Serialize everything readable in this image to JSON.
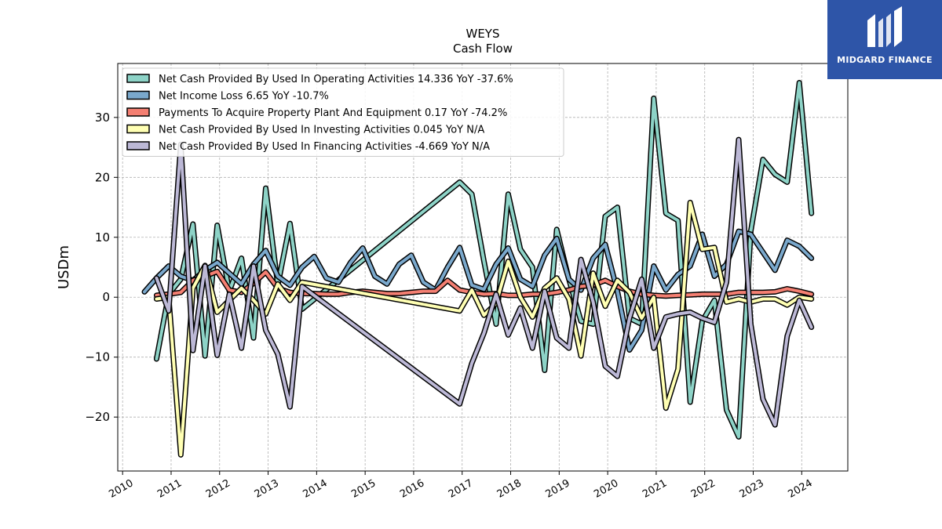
{
  "title_line1": "WEYS",
  "title_line2": "Cash Flow",
  "ylabel": "USDm",
  "logo_text": "MIDGARD FINANCE",
  "chart_data": {
    "type": "line",
    "title": "WEYS Cash Flow",
    "ylabel": "USDm",
    "xlim": [
      2009.9,
      2024.95
    ],
    "ylim": [
      -29,
      39
    ],
    "x_ticks": [
      2010,
      2011,
      2012,
      2013,
      2014,
      2015,
      2016,
      2017,
      2018,
      2019,
      2020,
      2021,
      2022,
      2023,
      2024
    ],
    "x_tick_labels": [
      "2010",
      "2011",
      "2012",
      "2013",
      "2014",
      "2015",
      "2016",
      "2017",
      "2018",
      "2019",
      "2020",
      "2021",
      "2022",
      "2023",
      "2024"
    ],
    "y_ticks": [
      -20,
      -10,
      0,
      10,
      20,
      30
    ],
    "y_tick_labels": [
      "−20",
      "−10",
      "0",
      "10",
      "20",
      "30"
    ],
    "grid": true,
    "legend_position": "top-left",
    "series": [
      {
        "name": "Net Cash Provided By Used In Operating Activities",
        "legend": "Net Cash Provided By Used In Operating Activities  14.336 YoY -37.6%",
        "color": "#8dd3c7",
        "points": [
          [
            2010.7,
            -10.3
          ],
          [
            2010.95,
            0.5
          ],
          [
            2011.2,
            3.0
          ],
          [
            2011.45,
            12.2
          ],
          [
            2011.7,
            -9.8
          ],
          [
            2011.95,
            12.0
          ],
          [
            2012.2,
            1.0
          ],
          [
            2012.45,
            6.5
          ],
          [
            2012.7,
            -6.8
          ],
          [
            2012.95,
            18.2
          ],
          [
            2013.2,
            2.0
          ],
          [
            2013.45,
            12.3
          ],
          [
            2013.7,
            -2.0
          ],
          [
            2016.95,
            19.2
          ],
          [
            2017.2,
            17.2
          ],
          [
            2017.45,
            6.0
          ],
          [
            2017.7,
            -4.5
          ],
          [
            2017.95,
            17.2
          ],
          [
            2018.2,
            8.0
          ],
          [
            2018.45,
            5.0
          ],
          [
            2018.7,
            -12.2
          ],
          [
            2018.95,
            11.3
          ],
          [
            2019.2,
            3.0
          ],
          [
            2019.45,
            -4.0
          ],
          [
            2019.7,
            -4.5
          ],
          [
            2019.95,
            13.5
          ],
          [
            2020.2,
            15.0
          ],
          [
            2020.45,
            -3.5
          ],
          [
            2020.7,
            -4.5
          ],
          [
            2020.95,
            33.2
          ],
          [
            2021.2,
            14.0
          ],
          [
            2021.45,
            12.8
          ],
          [
            2021.7,
            -17.5
          ],
          [
            2021.95,
            -4.0
          ],
          [
            2022.2,
            -0.5
          ],
          [
            2022.45,
            -18.8
          ],
          [
            2022.7,
            -23.3
          ],
          [
            2022.95,
            11.0
          ],
          [
            2023.2,
            23.0
          ],
          [
            2023.45,
            20.5
          ],
          [
            2023.7,
            19.2
          ],
          [
            2023.95,
            35.8
          ],
          [
            2024.2,
            14.0
          ]
        ]
      },
      {
        "name": "Net Income Loss",
        "legend": "Net Income Loss  6.65 YoY -10.7%",
        "color": "#7aa8cc",
        "points": [
          [
            2010.45,
            0.9
          ],
          [
            2010.7,
            3.2
          ],
          [
            2010.95,
            5.2
          ],
          [
            2011.2,
            3.5
          ],
          [
            2011.45,
            2.8
          ],
          [
            2011.7,
            4.5
          ],
          [
            2011.95,
            5.8
          ],
          [
            2012.2,
            4.0
          ],
          [
            2012.45,
            2.2
          ],
          [
            2012.7,
            5.5
          ],
          [
            2012.95,
            7.8
          ],
          [
            2013.2,
            3.5
          ],
          [
            2013.45,
            2.0
          ],
          [
            2013.7,
            5.0
          ],
          [
            2013.95,
            6.8
          ],
          [
            2014.2,
            3.2
          ],
          [
            2014.45,
            2.5
          ],
          [
            2014.7,
            5.8
          ],
          [
            2014.95,
            8.2
          ],
          [
            2015.2,
            3.5
          ],
          [
            2015.45,
            2.2
          ],
          [
            2015.7,
            5.5
          ],
          [
            2015.95,
            7.0
          ],
          [
            2016.2,
            2.5
          ],
          [
            2016.45,
            1.2
          ],
          [
            2016.7,
            5.0
          ],
          [
            2016.95,
            8.3
          ],
          [
            2017.2,
            2.0
          ],
          [
            2017.45,
            1.3
          ],
          [
            2017.7,
            5.5
          ],
          [
            2017.95,
            8.2
          ],
          [
            2018.2,
            3.0
          ],
          [
            2018.45,
            1.8
          ],
          [
            2018.7,
            7.0
          ],
          [
            2018.95,
            9.8
          ],
          [
            2019.2,
            3.0
          ],
          [
            2019.45,
            1.2
          ],
          [
            2019.7,
            6.5
          ],
          [
            2019.95,
            8.8
          ],
          [
            2020.2,
            1.0
          ],
          [
            2020.45,
            -8.8
          ],
          [
            2020.7,
            -5.5
          ],
          [
            2020.95,
            5.2
          ],
          [
            2021.2,
            1.2
          ],
          [
            2021.45,
            3.8
          ],
          [
            2021.7,
            5.2
          ],
          [
            2021.95,
            10.5
          ],
          [
            2022.2,
            3.5
          ],
          [
            2022.45,
            5.5
          ],
          [
            2022.7,
            11.0
          ],
          [
            2022.95,
            10.5
          ],
          [
            2023.2,
            7.5
          ],
          [
            2023.45,
            4.5
          ],
          [
            2023.7,
            9.5
          ],
          [
            2023.95,
            8.5
          ],
          [
            2024.2,
            6.5
          ]
        ]
      },
      {
        "name": "Payments To Acquire Property Plant And Equipment",
        "legend": "Payments To Acquire Property Plant And Equipment  0.17 YoY -74.2%",
        "color": "#f47f72",
        "points": [
          [
            2010.7,
            0.3
          ],
          [
            2010.95,
            0.5
          ],
          [
            2011.2,
            0.8
          ],
          [
            2011.45,
            2.8
          ],
          [
            2011.7,
            3.5
          ],
          [
            2011.95,
            4.3
          ],
          [
            2012.2,
            1.2
          ],
          [
            2012.45,
            0.8
          ],
          [
            2012.7,
            2.3
          ],
          [
            2012.95,
            4.2
          ],
          [
            2013.2,
            1.5
          ],
          [
            2013.45,
            0.8
          ],
          [
            2013.7,
            0.6
          ],
          [
            2013.95,
            0.6
          ],
          [
            2014.2,
            0.5
          ],
          [
            2014.45,
            0.5
          ],
          [
            2014.7,
            0.8
          ],
          [
            2014.95,
            1.0
          ],
          [
            2015.2,
            0.8
          ],
          [
            2015.45,
            0.6
          ],
          [
            2015.7,
            0.6
          ],
          [
            2015.95,
            0.8
          ],
          [
            2016.2,
            1.0
          ],
          [
            2016.45,
            1.0
          ],
          [
            2016.7,
            2.8
          ],
          [
            2016.95,
            1.2
          ],
          [
            2017.2,
            0.8
          ],
          [
            2017.45,
            0.5
          ],
          [
            2017.7,
            0.6
          ],
          [
            2017.95,
            0.3
          ],
          [
            2018.2,
            0.3
          ],
          [
            2018.45,
            0.5
          ],
          [
            2018.7,
            0.5
          ],
          [
            2018.95,
            0.8
          ],
          [
            2019.2,
            1.2
          ],
          [
            2019.45,
            1.8
          ],
          [
            2019.7,
            2.0
          ],
          [
            2019.95,
            2.8
          ],
          [
            2020.2,
            1.8
          ],
          [
            2020.45,
            1.0
          ],
          [
            2020.7,
            0.5
          ],
          [
            2020.95,
            0.3
          ],
          [
            2021.2,
            0.2
          ],
          [
            2021.45,
            0.3
          ],
          [
            2021.7,
            0.4
          ],
          [
            2021.95,
            0.5
          ],
          [
            2022.2,
            0.5
          ],
          [
            2022.45,
            0.5
          ],
          [
            2022.7,
            0.8
          ],
          [
            2022.95,
            0.8
          ],
          [
            2023.2,
            0.8
          ],
          [
            2023.45,
            0.9
          ],
          [
            2023.7,
            1.4
          ],
          [
            2023.95,
            1.0
          ],
          [
            2024.2,
            0.5
          ]
        ]
      },
      {
        "name": "Net Cash Provided By Used In Investing Activities",
        "legend": "Net Cash Provided By Used In Investing Activities  0.045 YoY N/A",
        "color": "#ffffb3",
        "points": [
          [
            2010.7,
            -0.3
          ],
          [
            2010.95,
            0.0
          ],
          [
            2011.2,
            -26.3
          ],
          [
            2011.45,
            1.5
          ],
          [
            2011.7,
            5.3
          ],
          [
            2011.95,
            -2.5
          ],
          [
            2012.2,
            -0.5
          ],
          [
            2012.45,
            1.5
          ],
          [
            2012.7,
            -0.5
          ],
          [
            2012.95,
            -2.8
          ],
          [
            2013.2,
            2.2
          ],
          [
            2013.45,
            -0.5
          ],
          [
            2013.7,
            2.5
          ],
          [
            2016.95,
            -2.3
          ],
          [
            2017.2,
            1.2
          ],
          [
            2017.45,
            -3.0
          ],
          [
            2017.7,
            -1.0
          ],
          [
            2017.95,
            6.0
          ],
          [
            2018.2,
            0.0
          ],
          [
            2018.45,
            -3.3
          ],
          [
            2018.7,
            1.5
          ],
          [
            2018.95,
            3.2
          ],
          [
            2019.2,
            -0.3
          ],
          [
            2019.45,
            -9.8
          ],
          [
            2019.7,
            4.0
          ],
          [
            2019.95,
            -1.5
          ],
          [
            2020.2,
            2.8
          ],
          [
            2020.45,
            0.8
          ],
          [
            2020.7,
            -3.5
          ],
          [
            2020.95,
            0.0
          ],
          [
            2021.2,
            -18.5
          ],
          [
            2021.45,
            -12.0
          ],
          [
            2021.7,
            15.8
          ],
          [
            2021.95,
            8.0
          ],
          [
            2022.2,
            8.3
          ],
          [
            2022.45,
            -0.8
          ],
          [
            2022.7,
            -0.3
          ],
          [
            2022.95,
            -0.8
          ],
          [
            2023.2,
            -0.3
          ],
          [
            2023.45,
            -0.3
          ],
          [
            2023.7,
            -1.3
          ],
          [
            2023.95,
            0.0
          ],
          [
            2024.2,
            -0.3
          ]
        ]
      },
      {
        "name": "Net Cash Provided By Used In Financing Activities",
        "legend": "Net Cash Provided By Used In Financing Activities  -4.669 YoY N/A",
        "color": "#bcb8d6",
        "points": [
          [
            2010.7,
            3.2
          ],
          [
            2010.95,
            -2.3
          ],
          [
            2011.2,
            25.5
          ],
          [
            2011.45,
            -8.9
          ],
          [
            2011.7,
            5.2
          ],
          [
            2011.95,
            -9.7
          ],
          [
            2012.2,
            0.5
          ],
          [
            2012.45,
            -8.5
          ],
          [
            2012.7,
            5.2
          ],
          [
            2012.95,
            -5.5
          ],
          [
            2013.2,
            -9.5
          ],
          [
            2013.45,
            -18.3
          ],
          [
            2013.7,
            1.8
          ],
          [
            2016.95,
            -17.8
          ],
          [
            2017.2,
            -11.0
          ],
          [
            2017.45,
            -6.0
          ],
          [
            2017.7,
            0.5
          ],
          [
            2017.95,
            -6.3
          ],
          [
            2018.2,
            -1.8
          ],
          [
            2018.45,
            -8.5
          ],
          [
            2018.7,
            1.0
          ],
          [
            2018.95,
            -6.8
          ],
          [
            2019.2,
            -8.5
          ],
          [
            2019.45,
            6.3
          ],
          [
            2019.7,
            -0.8
          ],
          [
            2019.95,
            -11.5
          ],
          [
            2020.2,
            -13.2
          ],
          [
            2020.45,
            -3.5
          ],
          [
            2020.7,
            3.0
          ],
          [
            2020.95,
            -8.5
          ],
          [
            2021.2,
            -3.3
          ],
          [
            2021.45,
            -2.8
          ],
          [
            2021.7,
            -2.5
          ],
          [
            2021.95,
            -3.5
          ],
          [
            2022.2,
            -4.2
          ],
          [
            2022.45,
            2.5
          ],
          [
            2022.7,
            26.3
          ],
          [
            2022.95,
            -4.5
          ],
          [
            2023.2,
            -17.0
          ],
          [
            2023.45,
            -21.3
          ],
          [
            2023.7,
            -6.5
          ],
          [
            2023.95,
            -0.5
          ],
          [
            2024.2,
            -5.0
          ]
        ]
      }
    ]
  }
}
